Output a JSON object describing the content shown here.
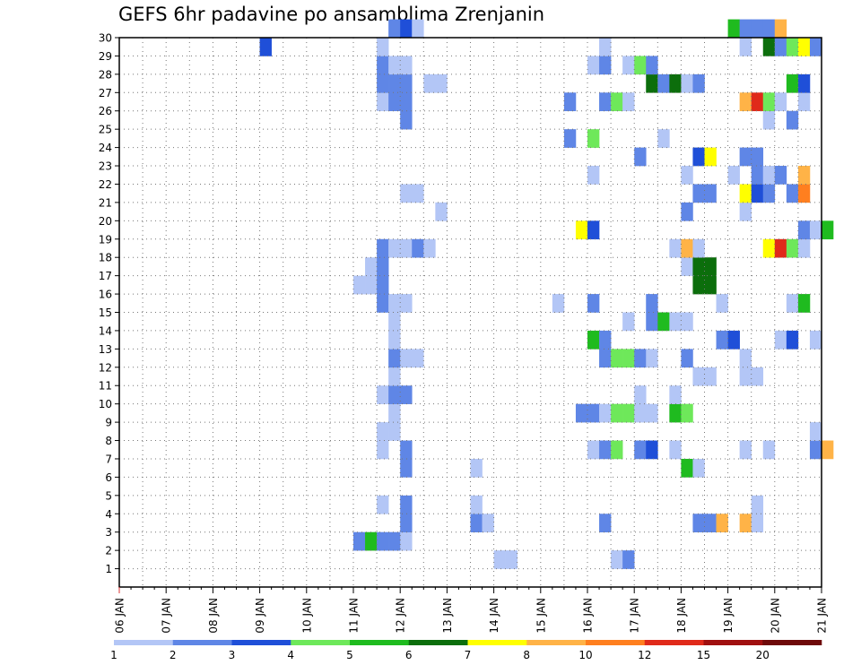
{
  "chart_data": {
    "type": "heatmap",
    "title": "GEFS 6hr padavine po ansamblima Zrenjanin",
    "x_tick_labels": [
      "06 JAN",
      "07 JAN",
      "08 JAN",
      "09 JAN",
      "10 JAN",
      "11 JAN",
      "12 JAN",
      "13 JAN",
      "14 JAN",
      "15 JAN",
      "16 JAN",
      "17 JAN",
      "18 JAN",
      "19 JAN",
      "20 JAN",
      "21 JAN"
    ],
    "y_tick_labels": [
      "1",
      "2",
      "3",
      "4",
      "5",
      "6",
      "7",
      "8",
      "9",
      "10",
      "11",
      "12",
      "13",
      "14",
      "15",
      "16",
      "17",
      "18",
      "19",
      "20",
      "21",
      "22",
      "23",
      "24",
      "25",
      "26",
      "27",
      "28",
      "29",
      "30"
    ],
    "x_range_hours": [
      0,
      360
    ],
    "cell_hours": 6,
    "y_range": [
      0,
      30
    ],
    "grid": true,
    "colorbar": {
      "labels": [
        "1",
        "2",
        "3",
        "4",
        "5",
        "6",
        "7",
        "8",
        "10",
        "12",
        "15",
        "20"
      ],
      "colors": [
        "#b3c6f6",
        "#5f86e6",
        "#1f4fd8",
        "#6ee85a",
        "#1fbb1f",
        "#0c6e0c",
        "#ffff00",
        "#ffb347",
        "#ff7f1f",
        "#e02a1a",
        "#a01010",
        "#6e0a0a"
      ]
    },
    "cells": [
      [
        1,
        0,
        32
      ],
      [
        1,
        0,
        33
      ],
      [
        1,
        0,
        42
      ],
      [
        1,
        1,
        43
      ],
      [
        2,
        1,
        20
      ],
      [
        2,
        4,
        21
      ],
      [
        2,
        1,
        22
      ],
      [
        2,
        1,
        23
      ],
      [
        2,
        0,
        24
      ],
      [
        3,
        1,
        24
      ],
      [
        3,
        1,
        30
      ],
      [
        3,
        0,
        31
      ],
      [
        3,
        1,
        41
      ],
      [
        3,
        1,
        49
      ],
      [
        3,
        1,
        50
      ],
      [
        3,
        7,
        51
      ],
      [
        3,
        7,
        53
      ],
      [
        3,
        0,
        54
      ],
      [
        4,
        0,
        22
      ],
      [
        4,
        1,
        24
      ],
      [
        4,
        0,
        30
      ],
      [
        4,
        0,
        54
      ],
      [
        6,
        1,
        24
      ],
      [
        6,
        0,
        30
      ],
      [
        6,
        4,
        48
      ],
      [
        6,
        0,
        49
      ],
      [
        7,
        0,
        22
      ],
      [
        7,
        1,
        24
      ],
      [
        7,
        0,
        40
      ],
      [
        7,
        1,
        41
      ],
      [
        7,
        3,
        42
      ],
      [
        7,
        1,
        44
      ],
      [
        7,
        2,
        45
      ],
      [
        7,
        0,
        47
      ],
      [
        7,
        0,
        53
      ],
      [
        7,
        0,
        55
      ],
      [
        7,
        1,
        59
      ],
      [
        7,
        7,
        60
      ],
      [
        8,
        0,
        22
      ],
      [
        8,
        0,
        23
      ],
      [
        8,
        0,
        59
      ],
      [
        9,
        0,
        23
      ],
      [
        9,
        1,
        39
      ],
      [
        9,
        1,
        40
      ],
      [
        9,
        0,
        41
      ],
      [
        9,
        3,
        42
      ],
      [
        9,
        3,
        43
      ],
      [
        9,
        0,
        44
      ],
      [
        9,
        0,
        45
      ],
      [
        9,
        4,
        47
      ],
      [
        9,
        3,
        48
      ],
      [
        10,
        0,
        22
      ],
      [
        10,
        1,
        23
      ],
      [
        10,
        1,
        24
      ],
      [
        10,
        0,
        44
      ],
      [
        10,
        0,
        47
      ],
      [
        11,
        0,
        23
      ],
      [
        11,
        0,
        49
      ],
      [
        11,
        0,
        50
      ],
      [
        11,
        0,
        53
      ],
      [
        11,
        0,
        54
      ],
      [
        12,
        1,
        23
      ],
      [
        12,
        0,
        24
      ],
      [
        12,
        0,
        25
      ],
      [
        12,
        1,
        41
      ],
      [
        12,
        3,
        42
      ],
      [
        12,
        3,
        43
      ],
      [
        12,
        1,
        44
      ],
      [
        12,
        0,
        45
      ],
      [
        12,
        1,
        48
      ],
      [
        12,
        0,
        53
      ],
      [
        13,
        0,
        23
      ],
      [
        13,
        4,
        40
      ],
      [
        13,
        1,
        41
      ],
      [
        13,
        1,
        51
      ],
      [
        13,
        2,
        52
      ],
      [
        13,
        0,
        56
      ],
      [
        13,
        2,
        57
      ],
      [
        13,
        0,
        59
      ],
      [
        14,
        0,
        23
      ],
      [
        14,
        0,
        43
      ],
      [
        14,
        1,
        45
      ],
      [
        14,
        4,
        46
      ],
      [
        14,
        0,
        47
      ],
      [
        14,
        0,
        48
      ],
      [
        15,
        1,
        22
      ],
      [
        15,
        0,
        23
      ],
      [
        15,
        0,
        24
      ],
      [
        15,
        0,
        37
      ],
      [
        15,
        1,
        40
      ],
      [
        15,
        1,
        45
      ],
      [
        15,
        0,
        51
      ],
      [
        15,
        0,
        57
      ],
      [
        15,
        4,
        58
      ],
      [
        16,
        0,
        20
      ],
      [
        16,
        0,
        21
      ],
      [
        16,
        1,
        22
      ],
      [
        16,
        5,
        49
      ],
      [
        16,
        5,
        50
      ],
      [
        17,
        0,
        21
      ],
      [
        17,
        1,
        22
      ],
      [
        17,
        0,
        48
      ],
      [
        17,
        5,
        49
      ],
      [
        17,
        5,
        50
      ],
      [
        18,
        1,
        22
      ],
      [
        18,
        0,
        23
      ],
      [
        18,
        0,
        24
      ],
      [
        18,
        1,
        25
      ],
      [
        18,
        0,
        26
      ],
      [
        18,
        0,
        47
      ],
      [
        18,
        7,
        48
      ],
      [
        18,
        0,
        49
      ],
      [
        18,
        6,
        55
      ],
      [
        18,
        9,
        56
      ],
      [
        18,
        3,
        57
      ],
      [
        18,
        0,
        58
      ],
      [
        19,
        6,
        39
      ],
      [
        19,
        2,
        40
      ],
      [
        19,
        1,
        58
      ],
      [
        19,
        0,
        59
      ],
      [
        19,
        4,
        60
      ],
      [
        20,
        0,
        27
      ],
      [
        20,
        1,
        48
      ],
      [
        20,
        0,
        53
      ],
      [
        21,
        0,
        24
      ],
      [
        21,
        0,
        25
      ],
      [
        21,
        1,
        49
      ],
      [
        21,
        1,
        50
      ],
      [
        21,
        6,
        53
      ],
      [
        21,
        2,
        54
      ],
      [
        21,
        1,
        55
      ],
      [
        21,
        1,
        57
      ],
      [
        21,
        8,
        58
      ],
      [
        22,
        0,
        40
      ],
      [
        22,
        0,
        48
      ],
      [
        22,
        0,
        52
      ],
      [
        22,
        1,
        54
      ],
      [
        22,
        0,
        55
      ],
      [
        22,
        1,
        56
      ],
      [
        22,
        7,
        58
      ],
      [
        23,
        1,
        44
      ],
      [
        23,
        2,
        49
      ],
      [
        23,
        6,
        50
      ],
      [
        23,
        1,
        53
      ],
      [
        23,
        1,
        54
      ],
      [
        24,
        1,
        38
      ],
      [
        24,
        3,
        40
      ],
      [
        24,
        0,
        46
      ],
      [
        25,
        1,
        24
      ],
      [
        25,
        0,
        55
      ],
      [
        25,
        1,
        57
      ],
      [
        26,
        0,
        22
      ],
      [
        26,
        1,
        23
      ],
      [
        26,
        1,
        24
      ],
      [
        26,
        1,
        38
      ],
      [
        26,
        1,
        41
      ],
      [
        26,
        3,
        42
      ],
      [
        26,
        0,
        43
      ],
      [
        26,
        7,
        53
      ],
      [
        26,
        9,
        54
      ],
      [
        26,
        3,
        55
      ],
      [
        26,
        0,
        56
      ],
      [
        26,
        0,
        58
      ],
      [
        27,
        1,
        22
      ],
      [
        27,
        1,
        23
      ],
      [
        27,
        1,
        24
      ],
      [
        27,
        0,
        26
      ],
      [
        27,
        0,
        27
      ],
      [
        27,
        5,
        45
      ],
      [
        27,
        1,
        46
      ],
      [
        27,
        5,
        47
      ],
      [
        27,
        0,
        48
      ],
      [
        27,
        1,
        49
      ],
      [
        27,
        4,
        57
      ],
      [
        27,
        2,
        58
      ],
      [
        28,
        1,
        22
      ],
      [
        28,
        0,
        23
      ],
      [
        28,
        0,
        24
      ],
      [
        28,
        0,
        40
      ],
      [
        28,
        1,
        41
      ],
      [
        28,
        0,
        43
      ],
      [
        28,
        3,
        44
      ],
      [
        28,
        1,
        45
      ],
      [
        29,
        2,
        12
      ],
      [
        29,
        0,
        22
      ],
      [
        29,
        0,
        41
      ],
      [
        29,
        0,
        53
      ],
      [
        29,
        5,
        55
      ],
      [
        29,
        1,
        56
      ],
      [
        29,
        3,
        57
      ],
      [
        29,
        6,
        58
      ],
      [
        29,
        1,
        59
      ],
      [
        30,
        1,
        23
      ],
      [
        30,
        2,
        24
      ],
      [
        30,
        0,
        25
      ],
      [
        30,
        4,
        52
      ],
      [
        30,
        1,
        53
      ],
      [
        30,
        1,
        54
      ],
      [
        30,
        1,
        55
      ],
      [
        30,
        7,
        56
      ]
    ]
  }
}
